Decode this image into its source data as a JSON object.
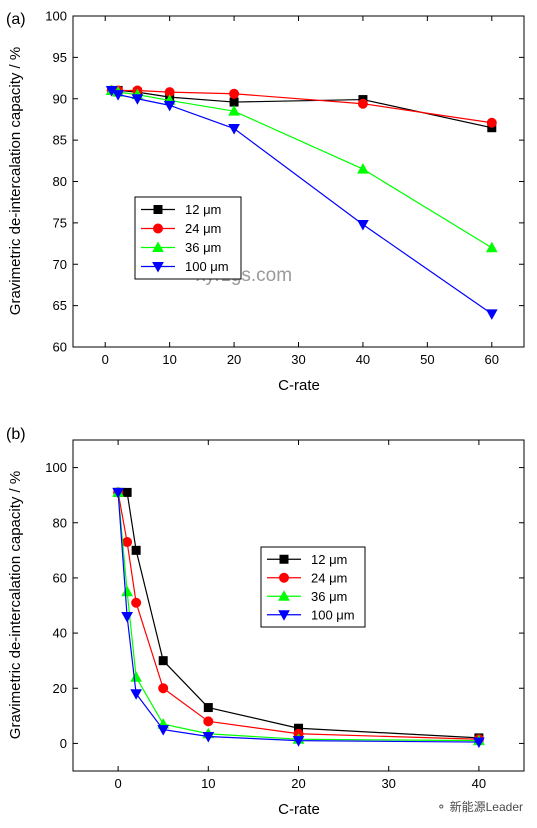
{
  "watermarks": {
    "center": "xyrzgs.com",
    "footer": "新能源Leader"
  },
  "chart_data": [
    {
      "type": "line",
      "panel_label": "(a)",
      "xlabel": "C-rate",
      "ylabel": "Gravimetric de-intercalation capacity / %",
      "xlim": [
        -5,
        65
      ],
      "ylim": [
        60,
        100
      ],
      "xticks": [
        0,
        10,
        20,
        30,
        40,
        50,
        60
      ],
      "yticks": [
        60,
        65,
        70,
        75,
        80,
        85,
        90,
        95,
        100
      ],
      "legend_position": "left-center",
      "series": [
        {
          "name": "12 μm",
          "color": "#000000",
          "marker": "square",
          "x": [
            1,
            2,
            5,
            10,
            20,
            40,
            60
          ],
          "y": [
            91,
            91,
            90.8,
            90.2,
            89.6,
            89.9,
            86.5
          ]
        },
        {
          "name": "24 μm",
          "color": "#ff0000",
          "marker": "circle",
          "x": [
            1,
            2,
            5,
            10,
            20,
            40,
            60
          ],
          "y": [
            91,
            91,
            91,
            90.8,
            90.6,
            89.4,
            87.1
          ]
        },
        {
          "name": "36 μm",
          "color": "#00ff00",
          "marker": "triangle-up",
          "x": [
            1,
            2,
            5,
            10,
            20,
            40,
            60
          ],
          "y": [
            91,
            90.8,
            90.5,
            89.8,
            88.5,
            81.5,
            72
          ]
        },
        {
          "name": "100 μm",
          "color": "#0000ff",
          "marker": "triangle-down",
          "x": [
            1,
            2,
            5,
            10,
            20,
            40,
            60
          ],
          "y": [
            91,
            90.5,
            90,
            89.2,
            86.4,
            74.8,
            64
          ]
        }
      ]
    },
    {
      "type": "line",
      "panel_label": "(b)",
      "xlabel": "C-rate",
      "ylabel": "Gravimetric de-intercalation capacity / %",
      "xlim": [
        -5,
        45
      ],
      "ylim": [
        -10,
        110
      ],
      "xticks": [
        0,
        10,
        20,
        30,
        40
      ],
      "yticks": [
        0,
        20,
        40,
        60,
        80,
        100
      ],
      "legend_position": "right-center",
      "series": [
        {
          "name": "12 μm",
          "color": "#000000",
          "marker": "square",
          "x": [
            0,
            1,
            2,
            5,
            10,
            20,
            40
          ],
          "y": [
            91,
            91,
            70,
            30,
            13,
            5.5,
            2
          ]
        },
        {
          "name": "24 μm",
          "color": "#ff0000",
          "marker": "circle",
          "x": [
            0,
            1,
            2,
            5,
            10,
            20,
            40
          ],
          "y": [
            91,
            73,
            51,
            20,
            8,
            3.5,
            1.5
          ]
        },
        {
          "name": "36 μm",
          "color": "#00ff00",
          "marker": "triangle-up",
          "x": [
            0,
            1,
            2,
            5,
            10,
            20,
            40
          ],
          "y": [
            91,
            55,
            24,
            7,
            3.5,
            1.5,
            1
          ]
        },
        {
          "name": "100 μm",
          "color": "#0000ff",
          "marker": "triangle-down",
          "x": [
            0,
            1,
            2,
            5,
            10,
            20,
            40
          ],
          "y": [
            91,
            46,
            18,
            5,
            2.5,
            1,
            0.5
          ]
        }
      ]
    }
  ]
}
